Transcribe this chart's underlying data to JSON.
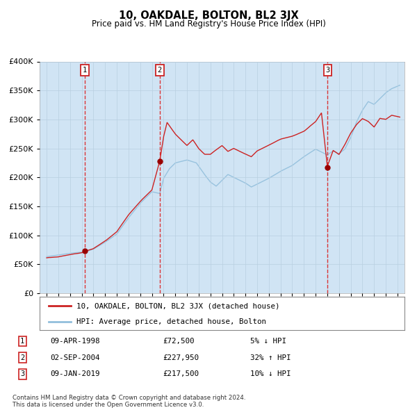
{
  "title": "10, OAKDALE, BOLTON, BL2 3JX",
  "subtitle": "Price paid vs. HM Land Registry's House Price Index (HPI)",
  "hpi_label": "HPI: Average price, detached house, Bolton",
  "property_label": "10, OAKDALE, BOLTON, BL2 3JX (detached house)",
  "hpi_color": "#92bfdc",
  "property_color": "#cc2222",
  "sale_color": "#990000",
  "dashed_color": "#dd2222",
  "shade_color": "#d0e4f4",
  "grid_color": "#b8cfe0",
  "ylim": [
    0,
    400000
  ],
  "yticks": [
    0,
    50000,
    100000,
    150000,
    200000,
    250000,
    300000,
    350000,
    400000
  ],
  "sale_events": [
    {
      "index": 1,
      "date": "09-APR-1998",
      "price": 72500,
      "pct": "5%",
      "dir": "↓"
    },
    {
      "index": 2,
      "date": "02-SEP-2004",
      "price": 227950,
      "pct": "32%",
      "dir": "↑"
    },
    {
      "index": 3,
      "date": "09-JAN-2019",
      "price": 217500,
      "pct": "10%",
      "dir": "↓"
    }
  ],
  "sale_years": [
    1998.27,
    2004.67,
    2019.03
  ],
  "footer": "Contains HM Land Registry data © Crown copyright and database right 2024.\nThis data is licensed under the Open Government Licence v3.0."
}
